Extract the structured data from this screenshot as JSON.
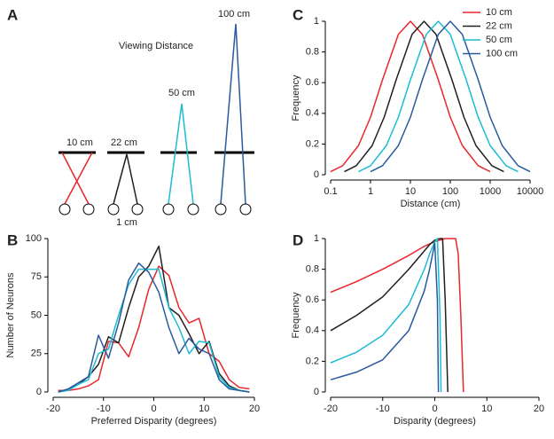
{
  "diagram": {
    "label": "A",
    "title": "Viewing Distance",
    "distances": [
      "10 cm",
      "22 cm",
      "50 cm",
      "100 cm"
    ],
    "eye_separation": "1 cm"
  },
  "chart_data": [
    {
      "type": "line",
      "label": "B",
      "xlabel": "Preferred Disparity (degrees)",
      "ylabel": "Number of Neurons",
      "xlim": [
        -20,
        20
      ],
      "ylim": [
        0,
        100
      ],
      "xticks": [
        -20,
        -10,
        0,
        10,
        20
      ],
      "yticks": [
        0,
        25,
        50,
        75,
        100
      ],
      "x": [
        -19,
        -17,
        -15,
        -13,
        -11,
        -9,
        -7,
        -5,
        -3,
        -1,
        1,
        3,
        5,
        7,
        9,
        11,
        13,
        15,
        17,
        19
      ],
      "series": [
        {
          "name": "10 cm",
          "color": "#e8262b",
          "values": [
            1,
            1,
            2,
            4,
            8,
            33,
            32,
            23,
            42,
            67,
            82,
            76,
            55,
            45,
            48,
            25,
            20,
            8,
            3,
            2
          ]
        },
        {
          "name": "22 cm",
          "color": "#231f20",
          "values": [
            0,
            2,
            5,
            10,
            18,
            36,
            32,
            55,
            75,
            82,
            95,
            55,
            50,
            38,
            25,
            33,
            12,
            4,
            1,
            0
          ]
        },
        {
          "name": "50 cm",
          "color": "#1bbcd4",
          "values": [
            0,
            1,
            5,
            8,
            25,
            28,
            50,
            70,
            80,
            80,
            80,
            55,
            42,
            25,
            33,
            32,
            10,
            3,
            1,
            0
          ]
        },
        {
          "name": "100 cm",
          "color": "#2a5a9c",
          "values": [
            0,
            2,
            6,
            10,
            37,
            22,
            45,
            73,
            84,
            78,
            65,
            42,
            25,
            35,
            28,
            25,
            8,
            2,
            1,
            0
          ]
        }
      ]
    },
    {
      "type": "line",
      "label": "C",
      "xlabel": "Distance (cm)",
      "ylabel": "Frequency",
      "xscale": "log",
      "legend": "upper right",
      "xlim": [
        0.1,
        10000
      ],
      "ylim": [
        0,
        1
      ],
      "xticks": [
        0.1,
        1,
        10,
        100,
        1000,
        10000
      ],
      "yticks": [
        0,
        0.2,
        0.4,
        0.6,
        0.8,
        1
      ],
      "series": [
        {
          "name": "10 cm",
          "color": "#e8262b",
          "x": [
            0.1,
            0.2,
            0.5,
            1,
            2,
            5,
            10,
            20,
            50,
            100,
            200,
            500,
            1000
          ],
          "values": [
            0.02,
            0.059,
            0.19,
            0.375,
            0.619,
            0.915,
            1,
            0.915,
            0.619,
            0.375,
            0.19,
            0.059,
            0.02
          ]
        },
        {
          "name": "22 cm",
          "color": "#231f20",
          "x": [
            0.22,
            0.44,
            1.1,
            2.2,
            4.4,
            11,
            22,
            44,
            110,
            220,
            440,
            1100,
            2200
          ],
          "values": [
            0.02,
            0.059,
            0.19,
            0.375,
            0.619,
            0.915,
            1,
            0.915,
            0.619,
            0.375,
            0.19,
            0.059,
            0.02
          ]
        },
        {
          "name": "50 cm",
          "color": "#1bbcd4",
          "x": [
            0.5,
            1,
            2.5,
            5,
            10,
            25,
            50,
            100,
            250,
            500,
            1000,
            2500,
            5000
          ],
          "values": [
            0.02,
            0.059,
            0.19,
            0.375,
            0.619,
            0.915,
            1,
            0.915,
            0.619,
            0.375,
            0.19,
            0.059,
            0.02
          ]
        },
        {
          "name": "100 cm",
          "color": "#2a5a9c",
          "x": [
            1,
            2,
            5,
            10,
            20,
            50,
            100,
            200,
            500,
            1000,
            2000,
            5000,
            10000
          ],
          "values": [
            0.02,
            0.059,
            0.19,
            0.375,
            0.619,
            0.915,
            1,
            0.915,
            0.619,
            0.375,
            0.19,
            0.059,
            0.02
          ]
        }
      ]
    },
    {
      "type": "line",
      "label": "D",
      "xlabel": "Disparity (degrees)",
      "ylabel": "Frequency",
      "xlim": [
        -20,
        20
      ],
      "ylim": [
        0,
        1
      ],
      "xticks": [
        -20,
        -10,
        0,
        10,
        20
      ],
      "yticks": [
        0,
        0.2,
        0.4,
        0.6,
        0.8,
        1
      ],
      "series": [
        {
          "name": "10 cm",
          "color": "#e8262b",
          "x": [
            -20,
            -15,
            -10,
            -5,
            -2,
            0,
            2,
            3,
            4,
            4.5,
            5,
            5.5
          ],
          "values": [
            0.65,
            0.72,
            0.8,
            0.89,
            0.95,
            0.98,
            1,
            1,
            1,
            0.9,
            0.5,
            0
          ]
        },
        {
          "name": "22 cm",
          "color": "#231f20",
          "x": [
            -20,
            -15,
            -10,
            -5,
            -2,
            -1,
            0,
            1,
            1.5,
            2,
            2.5
          ],
          "values": [
            0.4,
            0.5,
            0.62,
            0.8,
            0.92,
            0.96,
            0.99,
            1,
            1,
            0.6,
            0
          ]
        },
        {
          "name": "50 cm",
          "color": "#1bbcd4",
          "x": [
            -20,
            -15,
            -10,
            -5,
            -2,
            -1,
            0,
            0.5,
            1,
            1.2
          ],
          "values": [
            0.19,
            0.26,
            0.37,
            0.57,
            0.8,
            0.9,
            0.98,
            1,
            0.5,
            0
          ]
        },
        {
          "name": "100 cm",
          "color": "#2a5a9c",
          "x": [
            -20,
            -15,
            -10,
            -5,
            -2,
            -1,
            0,
            0.5,
            0.7
          ],
          "values": [
            0.08,
            0.13,
            0.21,
            0.4,
            0.66,
            0.8,
            0.97,
            0.6,
            0
          ]
        }
      ]
    }
  ]
}
